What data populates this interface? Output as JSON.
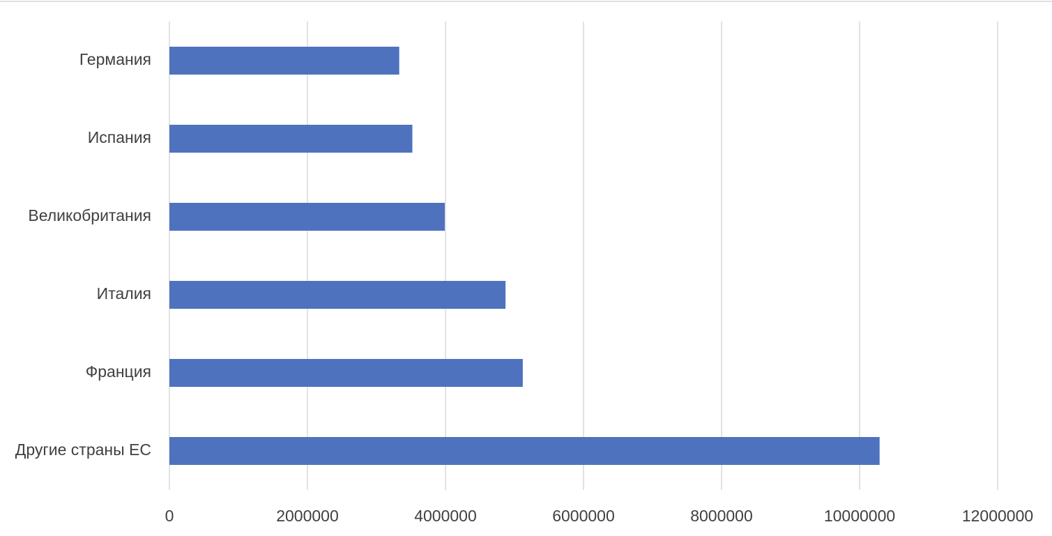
{
  "chart_data": {
    "type": "bar",
    "orientation": "horizontal",
    "categories": [
      "Германия",
      "Испания",
      "Великобритания",
      "Италия",
      "Франция",
      "Другие страны ЕС"
    ],
    "values": [
      3330000,
      3520000,
      3990000,
      4870000,
      5120000,
      10290000
    ],
    "color": "#4e72be",
    "xlim": [
      0,
      12000000
    ],
    "xticks": [
      0,
      2000000,
      4000000,
      6000000,
      8000000,
      10000000,
      12000000
    ],
    "grid": true
  }
}
